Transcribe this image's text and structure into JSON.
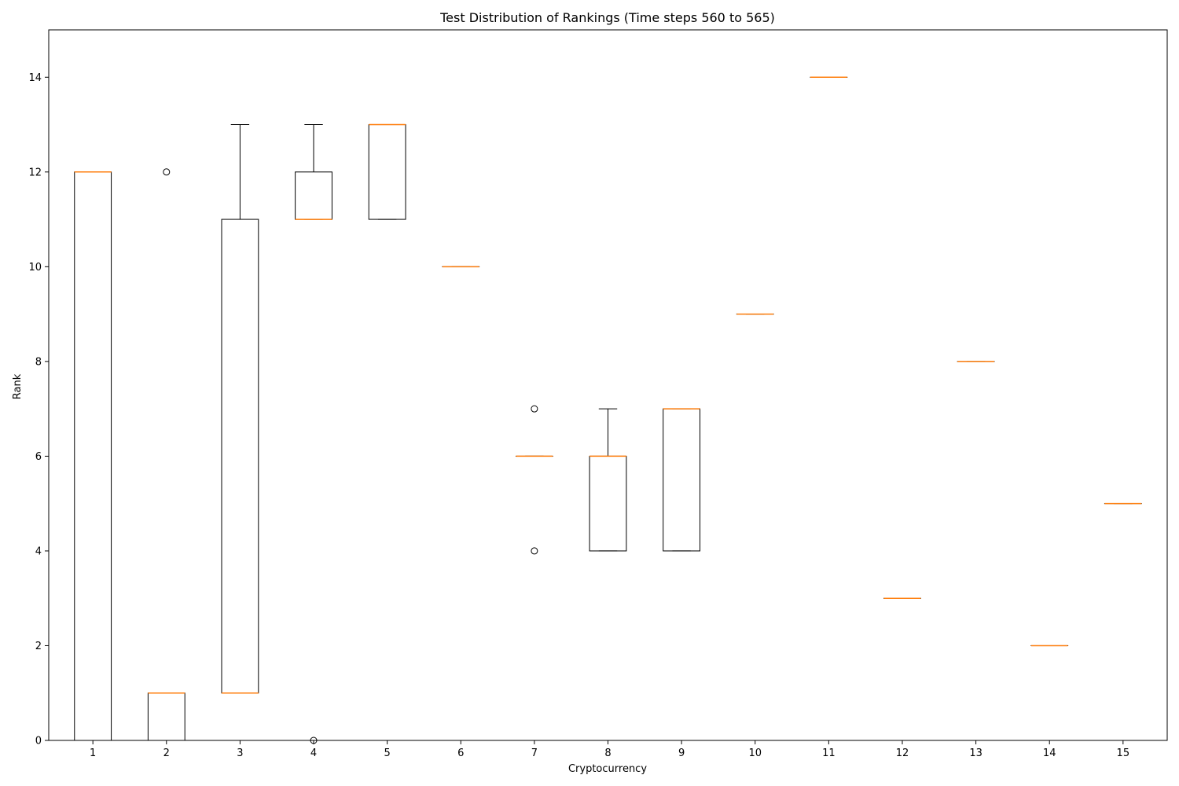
{
  "chart_data": {
    "type": "boxplot",
    "title": "Test Distribution of Rankings (Time steps 560 to 565)",
    "xlabel": "Cryptocurrency",
    "ylabel": "Rank",
    "categories": [
      "1",
      "2",
      "3",
      "4",
      "5",
      "6",
      "7",
      "8",
      "9",
      "10",
      "11",
      "12",
      "13",
      "14",
      "15"
    ],
    "ylim": [
      0,
      15
    ],
    "yticks": [
      0,
      2,
      4,
      6,
      8,
      10,
      12,
      14
    ],
    "grid": false,
    "legend": "none",
    "boxes": [
      {
        "label": "1",
        "whislo": 0,
        "q1": 0,
        "med": 12,
        "q3": 12,
        "whishi": 12,
        "fliers": []
      },
      {
        "label": "2",
        "whislo": 0,
        "q1": 0,
        "med": 1,
        "q3": 1,
        "whishi": 1,
        "fliers": [
          12
        ]
      },
      {
        "label": "3",
        "whislo": 1,
        "q1": 1,
        "med": 1,
        "q3": 11,
        "whishi": 13,
        "fliers": []
      },
      {
        "label": "4",
        "whislo": 11,
        "q1": 11,
        "med": 11,
        "q3": 12,
        "whishi": 13,
        "fliers": [
          0
        ]
      },
      {
        "label": "5",
        "whislo": 11,
        "q1": 11,
        "med": 13,
        "q3": 13,
        "whishi": 13,
        "fliers": []
      },
      {
        "label": "6",
        "whislo": 10,
        "q1": 10,
        "med": 10,
        "q3": 10,
        "whishi": 10,
        "fliers": []
      },
      {
        "label": "7",
        "whislo": 6,
        "q1": 6,
        "med": 6,
        "q3": 6,
        "whishi": 6,
        "fliers": [
          7,
          4
        ]
      },
      {
        "label": "8",
        "whislo": 4,
        "q1": 4,
        "med": 6,
        "q3": 6,
        "whishi": 7,
        "fliers": []
      },
      {
        "label": "9",
        "whislo": 4,
        "q1": 4,
        "med": 7,
        "q3": 7,
        "whishi": 7,
        "fliers": []
      },
      {
        "label": "10",
        "whislo": 9,
        "q1": 9,
        "med": 9,
        "q3": 9,
        "whishi": 9,
        "fliers": []
      },
      {
        "label": "11",
        "whislo": 14,
        "q1": 14,
        "med": 14,
        "q3": 14,
        "whishi": 14,
        "fliers": []
      },
      {
        "label": "12",
        "whislo": 3,
        "q1": 3,
        "med": 3,
        "q3": 3,
        "whishi": 3,
        "fliers": []
      },
      {
        "label": "13",
        "whislo": 8,
        "q1": 8,
        "med": 8,
        "q3": 8,
        "whishi": 8,
        "fliers": []
      },
      {
        "label": "14",
        "whislo": 2,
        "q1": 2,
        "med": 2,
        "q3": 2,
        "whishi": 2,
        "fliers": []
      },
      {
        "label": "15",
        "whislo": 5,
        "q1": 5,
        "med": 5,
        "q3": 5,
        "whishi": 5,
        "fliers": []
      }
    ],
    "colors": {
      "box": "#000000",
      "median": "#ff7f0e",
      "axes": "#000000",
      "background": "#ffffff"
    }
  }
}
